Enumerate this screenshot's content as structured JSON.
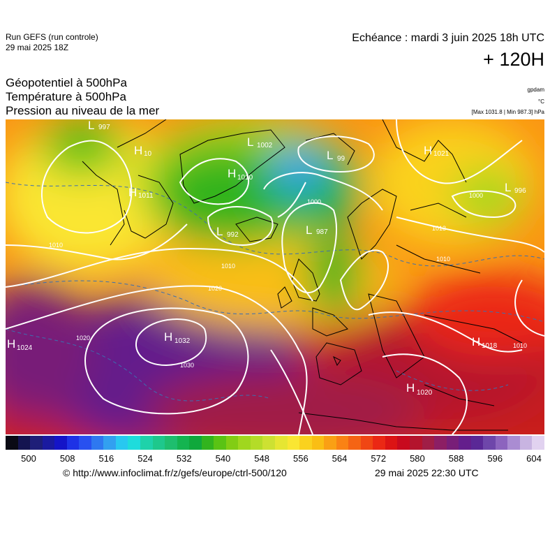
{
  "header": {
    "run_line1": "Run GEFS (run controle)",
    "run_line2": "29 mai 2025 18Z",
    "echeance": "Echéance : mardi 3 juin 2025 18h UTC",
    "lead": "+ 120H"
  },
  "legend_titles": {
    "line1": "Géopotentiel à 500hPa",
    "line2": "Température à 500hPa",
    "line3": "Pression au niveau de la mer",
    "unit_gpdam": "gpdam",
    "unit_c": "°C",
    "maxmin": "[Max 1031.8 | Min 987.3] hPa"
  },
  "pressure_centers": [
    {
      "type": "L",
      "value": "997"
    },
    {
      "type": "H",
      "value": "10"
    },
    {
      "type": "H",
      "value": "1011"
    },
    {
      "type": "L",
      "value": "1002"
    },
    {
      "type": "H",
      "value": "1010"
    },
    {
      "type": "L",
      "value": "99"
    },
    {
      "type": "L",
      "value": "992"
    },
    {
      "type": "L",
      "value": "987"
    },
    {
      "type": "H",
      "value": "1021"
    },
    {
      "type": "L",
      "value": "996"
    },
    {
      "type": "H",
      "value": "1024"
    },
    {
      "type": "H",
      "value": "1032"
    },
    {
      "type": "H",
      "value": "1018"
    },
    {
      "type": "H",
      "value": "1020"
    }
  ],
  "isobar_labels": [
    "1000",
    "1010",
    "1020",
    "1030",
    "1000",
    "1010",
    "1010",
    "1010",
    "1020",
    "1013"
  ],
  "colors": {
    "isobar": "#ffffff",
    "isotherm": "#3c6fb0"
  },
  "colorbar": {
    "colors": [
      "#0a0a14",
      "#141450",
      "#1e1e78",
      "#1a1aa0",
      "#1414c8",
      "#1e32e6",
      "#2850f0",
      "#2e78f0",
      "#32a0f0",
      "#28c8f0",
      "#1edcdc",
      "#1ed2aa",
      "#1ec88c",
      "#1ebe6e",
      "#14b450",
      "#0fa83c",
      "#32b41e",
      "#5ac314",
      "#82cd14",
      "#a0d71e",
      "#b4dc28",
      "#cde132",
      "#e6e632",
      "#fae632",
      "#fad21e",
      "#fabe14",
      "#faa014",
      "#fa8214",
      "#f56414",
      "#f04614",
      "#eb2814",
      "#dc1414",
      "#c80a1e",
      "#b4142d",
      "#a01e46",
      "#8c1e64",
      "#781e78",
      "#641e8c",
      "#5a2896",
      "#6e46aa",
      "#8c64be",
      "#aa8cd2",
      "#c8b4e1",
      "#e1d2f0"
    ],
    "ticks": [
      "500",
      "508",
      "516",
      "524",
      "532",
      "540",
      "548",
      "556",
      "564",
      "572",
      "580",
      "588",
      "596",
      "604"
    ]
  },
  "footer": {
    "url": "© http://www.infoclimat.fr/z/gefs/europe/ctrl-500/120",
    "timestamp": "29 mai 2025 22:30 UTC"
  }
}
